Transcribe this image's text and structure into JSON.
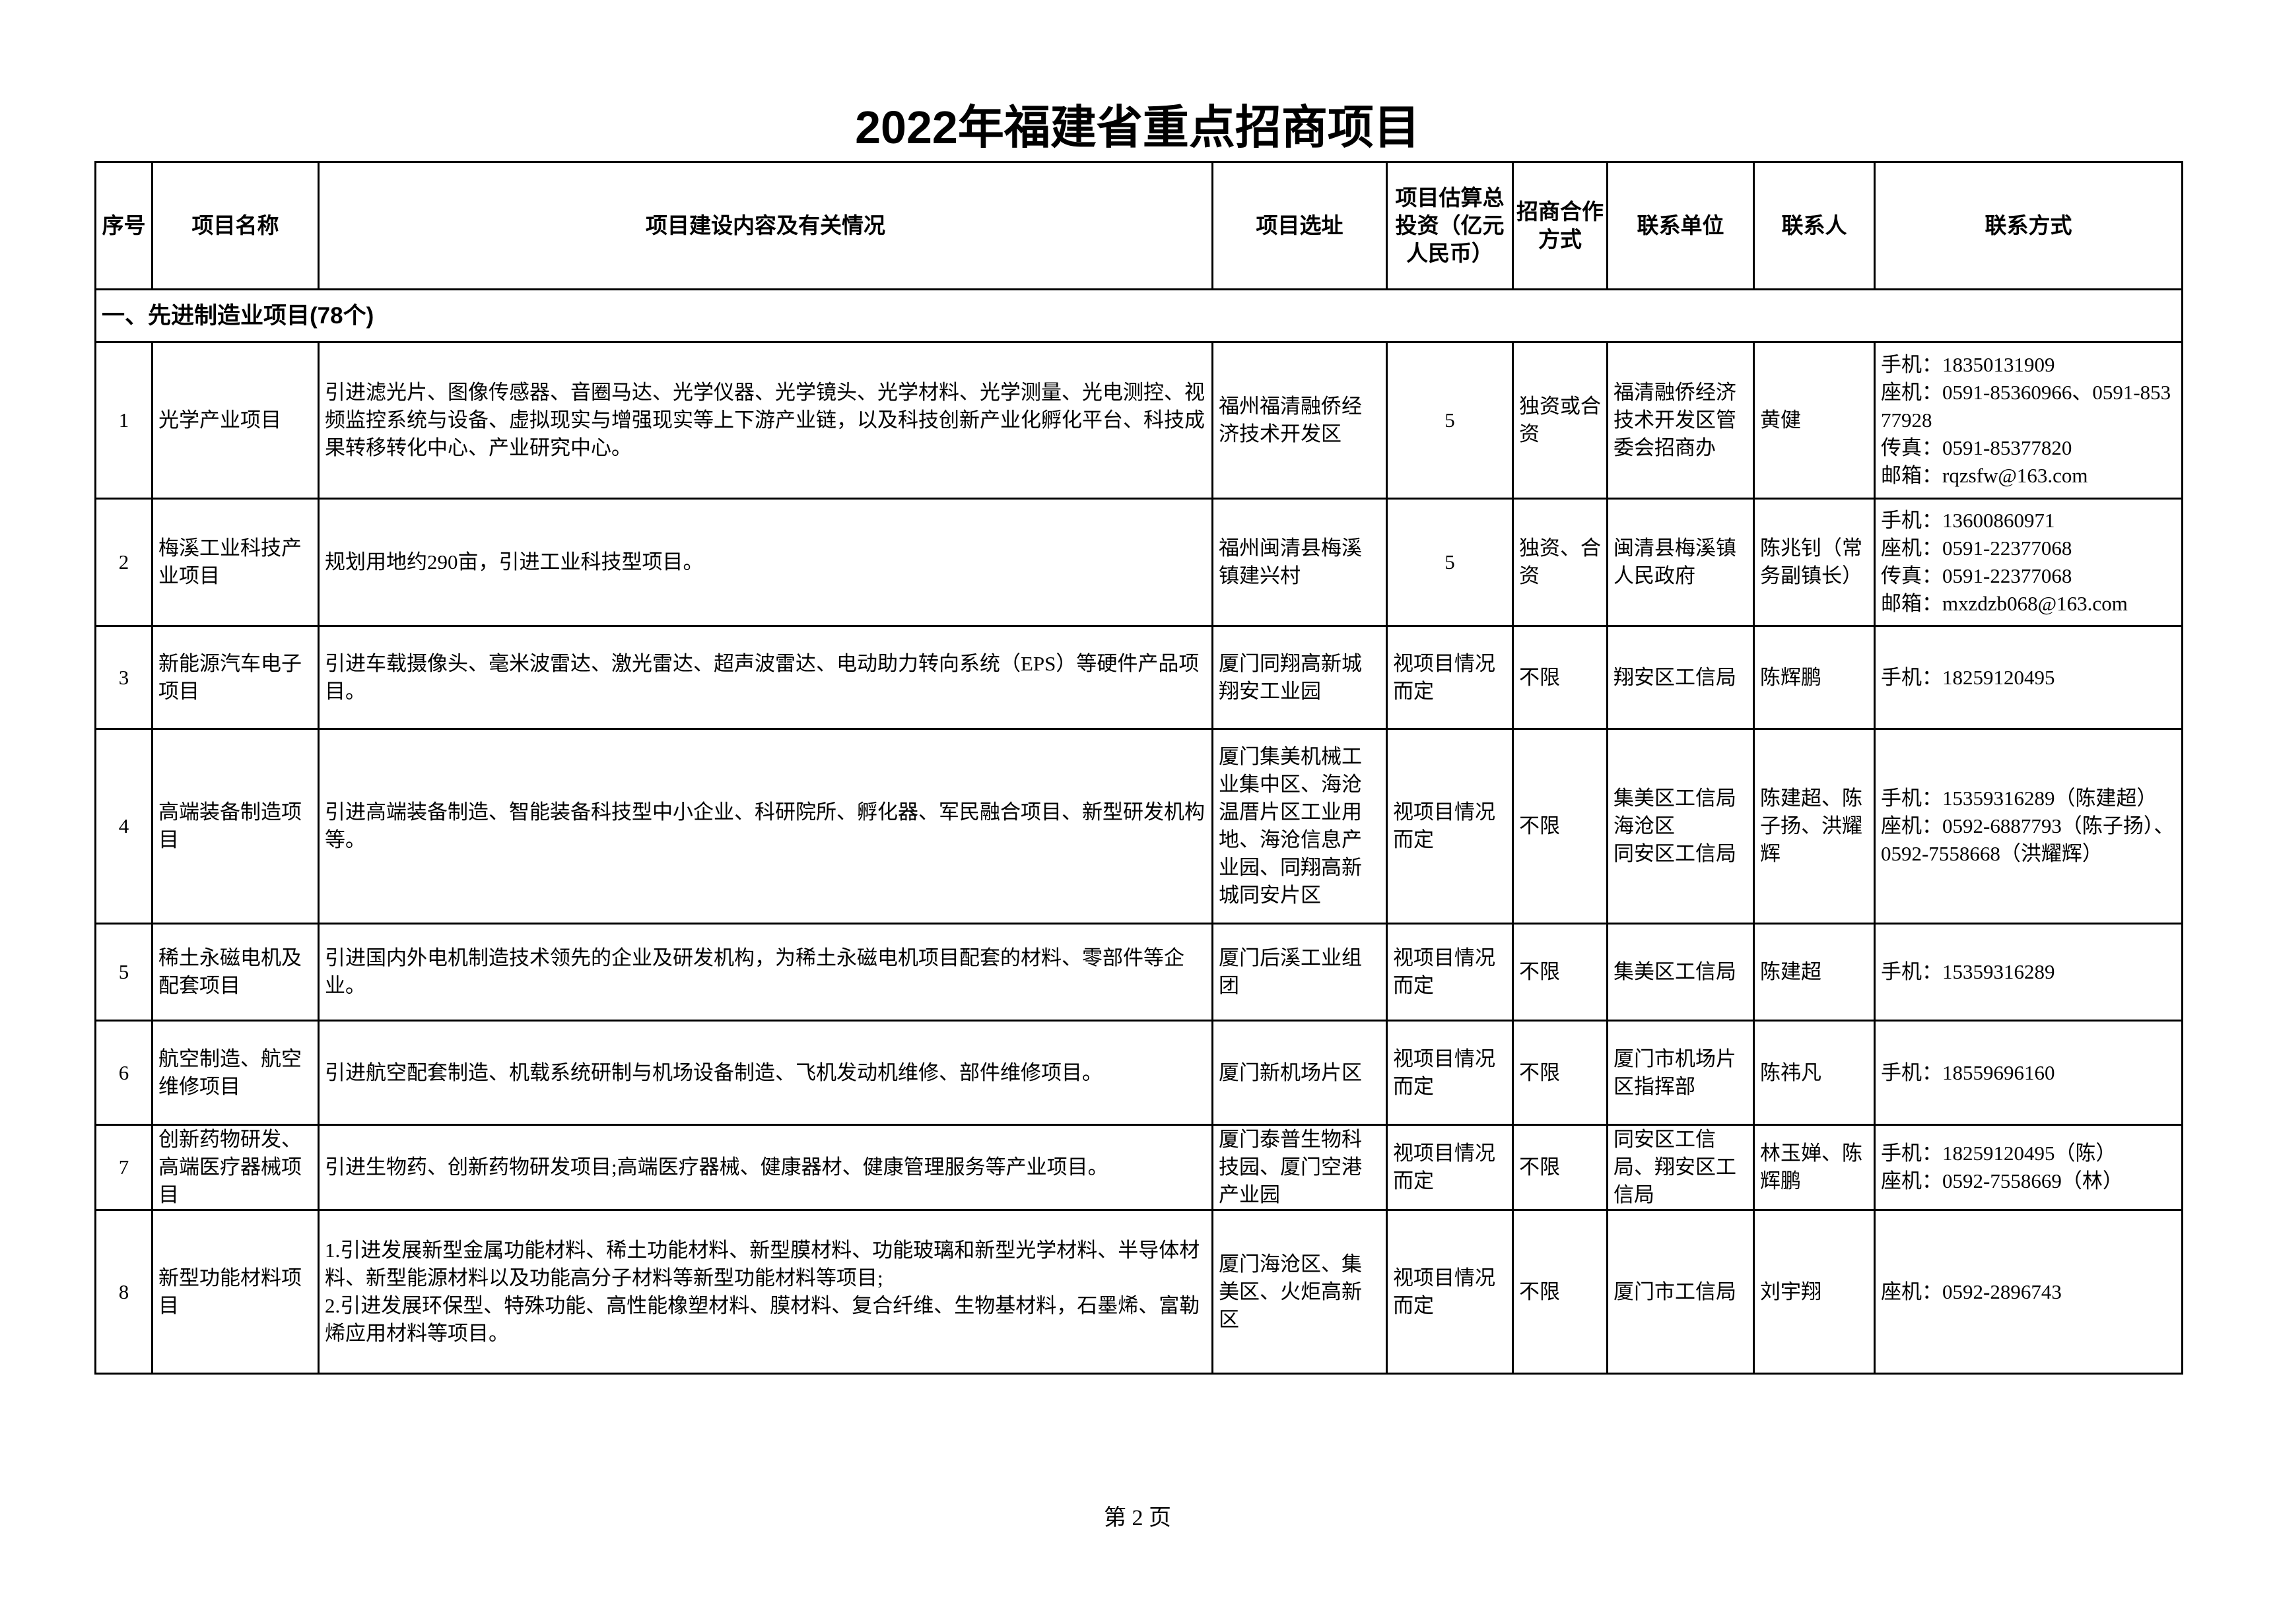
{
  "title": "2022年福建省重点招商项目",
  "headers": [
    "序号",
    "项目名称",
    "项目建设内容及有关情况",
    "项目选址",
    "项目估算总投资（亿元人民币）",
    "招商合作方式",
    "联系单位",
    "联系人",
    "联系方式"
  ],
  "section": "一、先进制造业项目(78个)",
  "rows": [
    {
      "no": "1",
      "name": "光学产业项目",
      "content": "引进滤光片、图像传感器、音圈马达、光学仪器、光学镜头、光学材料、光学测量、光电测控、视频监控系统与设备、虚拟现实与增强现实等上下游产业链，以及科技创新产业化孵化平台、科技成果转移转化中心、产业研究中心。",
      "site": "福州福清融侨经济技术开发区",
      "investment": "5",
      "mode": "独资或合资",
      "unit": "福清融侨经济技术开发区管委会招商办",
      "person": "黄健",
      "contact": "手机：18350131909\n座机：0591-85360966、0591-85377928\n传真：0591-85377820\n邮箱：rqzsfw@163.com"
    },
    {
      "no": "2",
      "name": "梅溪工业科技产业项目",
      "content": "规划用地约290亩，引进工业科技型项目。",
      "site": "福州闽清县梅溪镇建兴村",
      "investment": "5",
      "mode": "独资、合资",
      "unit": "闽清县梅溪镇人民政府",
      "person": "陈兆钊（常务副镇长）",
      "contact": "手机：13600860971\n座机：0591-22377068\n传真：0591-22377068\n邮箱：mxzdzb068@163.com"
    },
    {
      "no": "3",
      "name": "新能源汽车电子项目",
      "content": "引进车载摄像头、毫米波雷达、激光雷达、超声波雷达、电动助力转向系统（EPS）等硬件产品项目。",
      "site": "厦门同翔高新城翔安工业园",
      "investment": "视项目情况而定",
      "mode": "不限",
      "unit": "翔安区工信局",
      "person": "陈辉鹏",
      "contact": "手机：18259120495"
    },
    {
      "no": "4",
      "name": "高端装备制造项目",
      "content": "引进高端装备制造、智能装备科技型中小企业、科研院所、孵化器、军民融合项目、新型研发机构等。",
      "site": "厦门集美机械工业集中区、海沧温厝片区工业用地、海沧信息产业园、同翔高新城同安片区",
      "investment": "视项目情况而定",
      "mode": "不限",
      "unit": "集美区工信局\n海沧区\n同安区工信局",
      "person": "陈建超、陈子扬、洪耀辉",
      "contact": "手机：15359316289（陈建超）\n座机：0592-6887793（陈子扬）、0592-7558668（洪耀辉）"
    },
    {
      "no": "5",
      "name": "稀土永磁电机及配套项目",
      "content": "引进国内外电机制造技术领先的企业及研发机构，为稀土永磁电机项目配套的材料、零部件等企业。",
      "site": "厦门后溪工业组团",
      "investment": "视项目情况而定",
      "mode": "不限",
      "unit": "集美区工信局",
      "person": "陈建超",
      "contact": "手机：15359316289"
    },
    {
      "no": "6",
      "name": "航空制造、航空维修项目",
      "content": "引进航空配套制造、机载系统研制与机场设备制造、飞机发动机维修、部件维修项目。",
      "site": "厦门新机场片区",
      "investment": "视项目情况而定",
      "mode": "不限",
      "unit": "厦门市机场片区指挥部",
      "person": "陈祎凡",
      "contact": "手机：18559696160"
    },
    {
      "no": "7",
      "name": "创新药物研发、高端医疗器械项目",
      "content": "引进生物药、创新药物研发项目;高端医疗器械、健康器材、健康管理服务等产业项目。",
      "site": "厦门泰普生物科技园、厦门空港产业园",
      "investment": "视项目情况而定",
      "mode": "不限",
      "unit": "同安区工信局、翔安区工信局",
      "person": "林玉婵、陈辉鹏",
      "contact": "手机：18259120495（陈）\n座机：0592-7558669（林）"
    },
    {
      "no": "8",
      "name": "新型功能材料项目",
      "content": "1.引进发展新型金属功能材料、稀土功能材料、新型膜材料、功能玻璃和新型光学材料、半导体材料、新型能源材料以及功能高分子材料等新型功能材料等项目;\n2.引进发展环保型、特殊功能、高性能橡塑材料、膜材料、复合纤维、生物基材料，石墨烯、富勒烯应用材料等项目。",
      "site": "厦门海沧区、集美区、火炬高新区",
      "investment": "视项目情况而定",
      "mode": "不限",
      "unit": "厦门市工信局",
      "person": "刘宇翔",
      "contact": "座机：0592-2896743"
    }
  ],
  "footer": "第 2 页"
}
